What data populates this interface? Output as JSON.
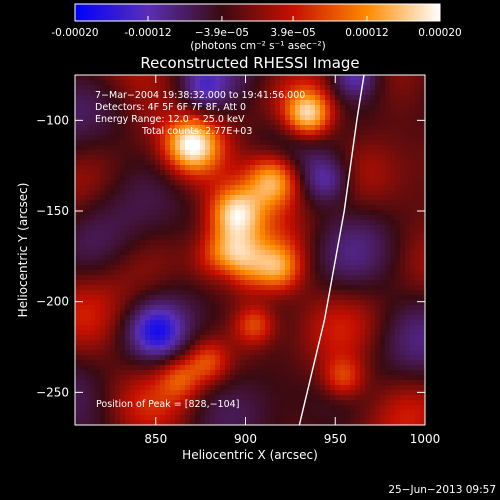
{
  "chart_data": {
    "type": "heatmap",
    "title": "Reconstructed RHESSI Image",
    "xlabel": "Heliocentric X (arcsec)",
    "ylabel": "Heliocentric Y (arcsec)",
    "xlim": [
      805,
      1000
    ],
    "ylim": [
      -268,
      -75
    ],
    "x_ticks": [
      850,
      900,
      950,
      1000
    ],
    "y_ticks": [
      -250,
      -200,
      -150,
      -100
    ],
    "colorbar": {
      "range": [
        -0.0002,
        0.0002
      ],
      "ticks": [
        "-0.00020",
        "-0.00012",
        "−3.9e−05",
        "3.9e−05",
        "0.00012",
        "0.00020"
      ],
      "tick_values": [
        -0.0002,
        -0.00012,
        -3.9e-05,
        3.9e-05,
        0.00012,
        0.0002
      ],
      "label": "(photons cm⁻² s⁻¹ asec⁻²)",
      "colors": [
        "#0000ff",
        "#5a2fb4",
        "#3a0a12",
        "#c81000",
        "#ff8a00",
        "#ffffff"
      ]
    },
    "annotations": [
      "7−Mar−2004 19:38:32.000 to 19:41:56.000",
      "Detectors: 4F 5F 6F 7F 8F, Att 0",
      "Energy Range: 12.0 − 25.0 keV",
      "Total counts: 2.77E+03"
    ],
    "peak_label": "Position of Peak = [828,−104]",
    "limb_curve": [
      [
        930,
        -268
      ],
      [
        944,
        -210
      ],
      [
        955,
        -150
      ],
      [
        962,
        -100
      ],
      [
        966,
        -75
      ]
    ]
  },
  "footer": {
    "date": "25−Jun−2013 09:57"
  }
}
